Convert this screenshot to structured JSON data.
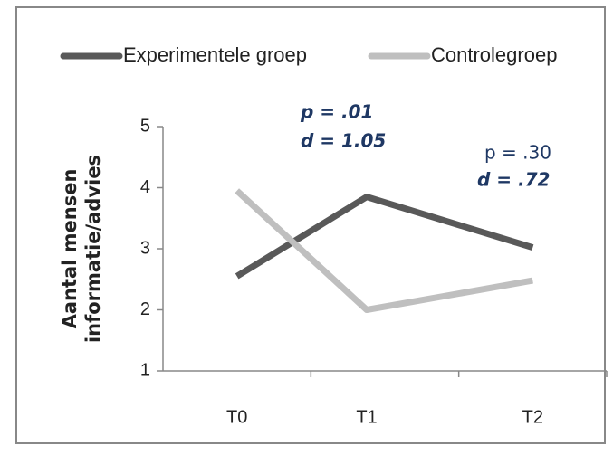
{
  "chart_data": {
    "type": "line",
    "categories": [
      "T0",
      "T1",
      "T2"
    ],
    "series": [
      {
        "name": "Experimentele groep",
        "color": "#595959",
        "values": [
          2.55,
          3.85,
          3.02
        ]
      },
      {
        "name": "Controlegroep",
        "color": "#bfbfbf",
        "values": [
          3.95,
          2.0,
          2.48
        ]
      }
    ],
    "ylabel": [
      "Aantal mensen",
      "informatie/advies"
    ],
    "annotations": [
      {
        "p": "p = .01",
        "d": "d = 1.05"
      },
      {
        "p": "p = .30",
        "d": "d = .72"
      }
    ],
    "ylim": [
      1,
      5
    ],
    "yticks": [
      1,
      2,
      3,
      4,
      5
    ],
    "legend": "top"
  }
}
